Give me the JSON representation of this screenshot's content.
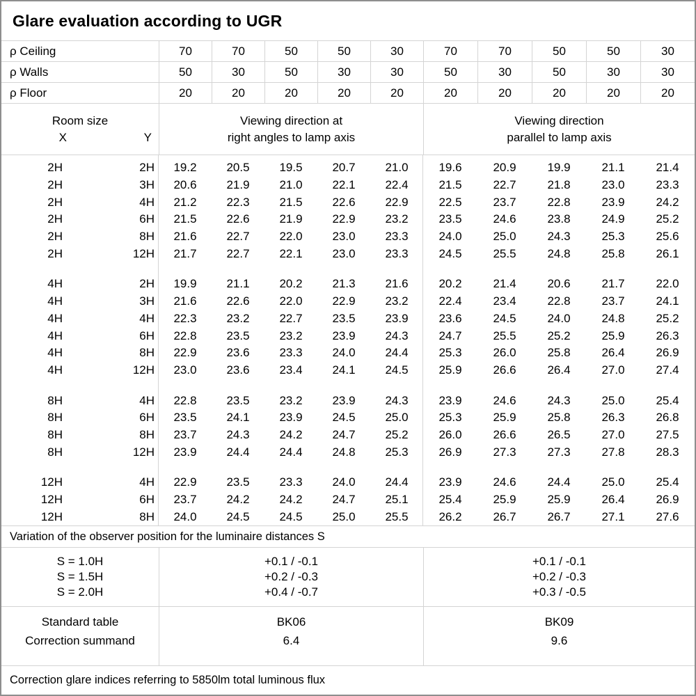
{
  "title": "Glare evaluation according to UGR",
  "header": {
    "rho_ceiling": {
      "label": "ρ Ceiling",
      "values": [
        "70",
        "70",
        "50",
        "50",
        "30",
        "70",
        "70",
        "50",
        "50",
        "30"
      ]
    },
    "rho_walls": {
      "label": "ρ Walls",
      "values": [
        "50",
        "30",
        "50",
        "30",
        "30",
        "50",
        "30",
        "50",
        "30",
        "30"
      ]
    },
    "rho_floor": {
      "label": "ρ Floor",
      "values": [
        "20",
        "20",
        "20",
        "20",
        "20",
        "20",
        "20",
        "20",
        "20",
        "20"
      ]
    },
    "room_size": {
      "label": "Room size",
      "x": "X",
      "y": "Y"
    },
    "group1_line1": "Viewing direction at",
    "group1_line2": "right angles to lamp axis",
    "group2_line1": "Viewing direction",
    "group2_line2": "parallel to lamp axis"
  },
  "blocks": [
    {
      "rows": [
        {
          "x": "2H",
          "y": "2H",
          "values": [
            "19.2",
            "20.5",
            "19.5",
            "20.7",
            "21.0",
            "19.6",
            "20.9",
            "19.9",
            "21.1",
            "21.4"
          ]
        },
        {
          "x": "2H",
          "y": "3H",
          "values": [
            "20.6",
            "21.9",
            "21.0",
            "22.1",
            "22.4",
            "21.5",
            "22.7",
            "21.8",
            "23.0",
            "23.3"
          ]
        },
        {
          "x": "2H",
          "y": "4H",
          "values": [
            "21.2",
            "22.3",
            "21.5",
            "22.6",
            "22.9",
            "22.5",
            "23.7",
            "22.8",
            "23.9",
            "24.2"
          ]
        },
        {
          "x": "2H",
          "y": "6H",
          "values": [
            "21.5",
            "22.6",
            "21.9",
            "22.9",
            "23.2",
            "23.5",
            "24.6",
            "23.8",
            "24.9",
            "25.2"
          ]
        },
        {
          "x": "2H",
          "y": "8H",
          "values": [
            "21.6",
            "22.7",
            "22.0",
            "23.0",
            "23.3",
            "24.0",
            "25.0",
            "24.3",
            "25.3",
            "25.6"
          ]
        },
        {
          "x": "2H",
          "y": "12H",
          "values": [
            "21.7",
            "22.7",
            "22.1",
            "23.0",
            "23.3",
            "24.5",
            "25.5",
            "24.8",
            "25.8",
            "26.1"
          ]
        }
      ]
    },
    {
      "rows": [
        {
          "x": "4H",
          "y": "2H",
          "values": [
            "19.9",
            "21.1",
            "20.2",
            "21.3",
            "21.6",
            "20.2",
            "21.4",
            "20.6",
            "21.7",
            "22.0"
          ]
        },
        {
          "x": "4H",
          "y": "3H",
          "values": [
            "21.6",
            "22.6",
            "22.0",
            "22.9",
            "23.2",
            "22.4",
            "23.4",
            "22.8",
            "23.7",
            "24.1"
          ]
        },
        {
          "x": "4H",
          "y": "4H",
          "values": [
            "22.3",
            "23.2",
            "22.7",
            "23.5",
            "23.9",
            "23.6",
            "24.5",
            "24.0",
            "24.8",
            "25.2"
          ]
        },
        {
          "x": "4H",
          "y": "6H",
          "values": [
            "22.8",
            "23.5",
            "23.2",
            "23.9",
            "24.3",
            "24.7",
            "25.5",
            "25.2",
            "25.9",
            "26.3"
          ]
        },
        {
          "x": "4H",
          "y": "8H",
          "values": [
            "22.9",
            "23.6",
            "23.3",
            "24.0",
            "24.4",
            "25.3",
            "26.0",
            "25.8",
            "26.4",
            "26.9"
          ]
        },
        {
          "x": "4H",
          "y": "12H",
          "values": [
            "23.0",
            "23.6",
            "23.4",
            "24.1",
            "24.5",
            "25.9",
            "26.6",
            "26.4",
            "27.0",
            "27.4"
          ]
        }
      ]
    },
    {
      "rows": [
        {
          "x": "8H",
          "y": "4H",
          "values": [
            "22.8",
            "23.5",
            "23.2",
            "23.9",
            "24.3",
            "23.9",
            "24.6",
            "24.3",
            "25.0",
            "25.4"
          ]
        },
        {
          "x": "8H",
          "y": "6H",
          "values": [
            "23.5",
            "24.1",
            "23.9",
            "24.5",
            "25.0",
            "25.3",
            "25.9",
            "25.8",
            "26.3",
            "26.8"
          ]
        },
        {
          "x": "8H",
          "y": "8H",
          "values": [
            "23.7",
            "24.3",
            "24.2",
            "24.7",
            "25.2",
            "26.0",
            "26.6",
            "26.5",
            "27.0",
            "27.5"
          ]
        },
        {
          "x": "8H",
          "y": "12H",
          "values": [
            "23.9",
            "24.4",
            "24.4",
            "24.8",
            "25.3",
            "26.9",
            "27.3",
            "27.3",
            "27.8",
            "28.3"
          ]
        }
      ]
    },
    {
      "rows": [
        {
          "x": "12H",
          "y": "4H",
          "values": [
            "22.9",
            "23.5",
            "23.3",
            "24.0",
            "24.4",
            "23.9",
            "24.6",
            "24.4",
            "25.0",
            "25.4"
          ]
        },
        {
          "x": "12H",
          "y": "6H",
          "values": [
            "23.7",
            "24.2",
            "24.2",
            "24.7",
            "25.1",
            "25.4",
            "25.9",
            "25.9",
            "26.4",
            "26.9"
          ]
        },
        {
          "x": "12H",
          "y": "8H",
          "values": [
            "24.0",
            "24.5",
            "24.5",
            "25.0",
            "25.5",
            "26.2",
            "26.7",
            "26.7",
            "27.1",
            "27.6"
          ]
        }
      ]
    }
  ],
  "variation_note": "Variation of the observer position for the luminaire distances S",
  "s_table": {
    "labels": [
      "S = 1.0H",
      "S = 1.5H",
      "S = 2.0H"
    ],
    "group1": [
      "+0.1 / -0.1",
      "+0.2 / -0.3",
      "+0.4 / -0.7"
    ],
    "group2": [
      "+0.1 / -0.1",
      "+0.2 / -0.3",
      "+0.3 / -0.5"
    ]
  },
  "standard": {
    "labels": [
      "Standard table",
      "Correction summand"
    ],
    "group1": [
      "BK06",
      "6.4"
    ],
    "group2": [
      "BK09",
      "9.6"
    ]
  },
  "footer_note": "Correction glare indices referring to 5850lm total luminous flux"
}
